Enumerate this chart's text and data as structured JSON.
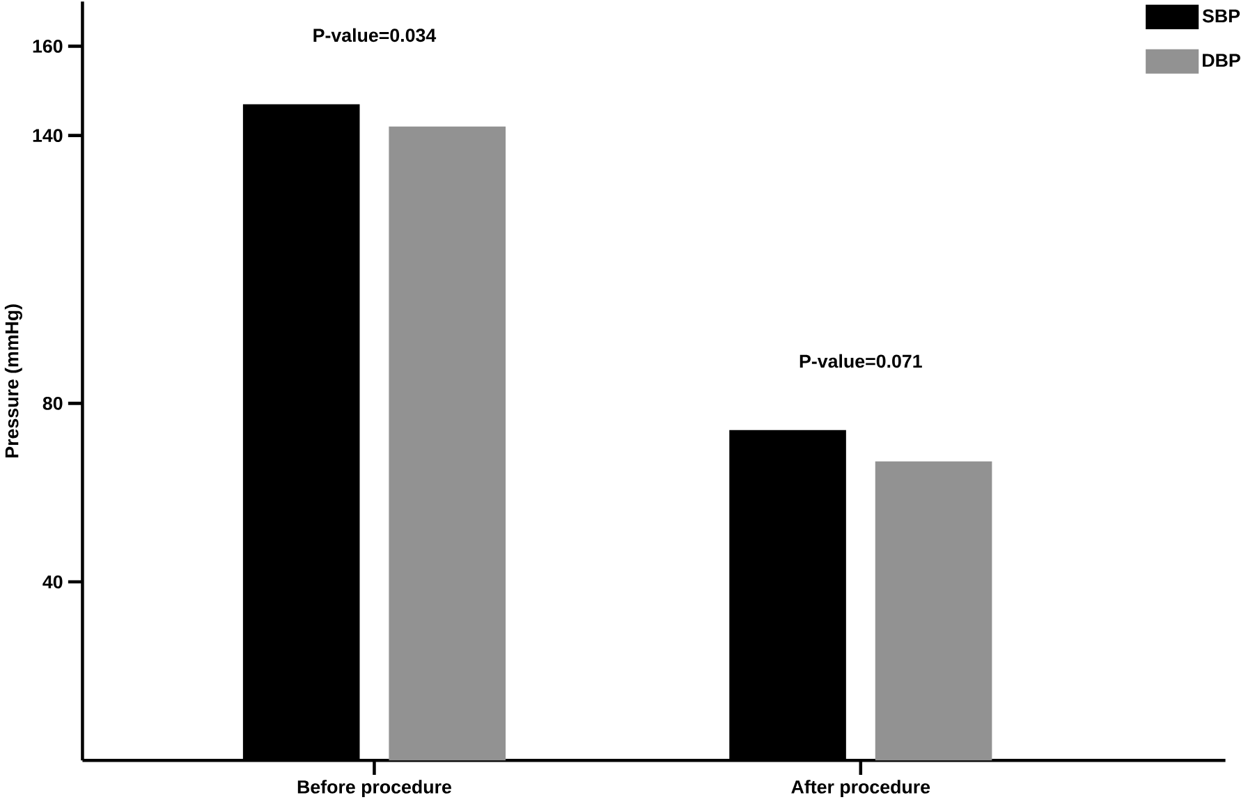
{
  "chart_data": {
    "type": "bar",
    "ylabel": "Pressure (mmHg)",
    "categories": [
      "Before procedure",
      "After procedure"
    ],
    "series": [
      {
        "name": "SBP",
        "color": "#000000",
        "values": [
          147,
          74
        ]
      },
      {
        "name": "DBP",
        "color": "#929292",
        "values": [
          142,
          67
        ]
      }
    ],
    "ylim": [
      0,
      170
    ],
    "yticks": [
      40,
      80,
      140,
      160
    ],
    "legend": "top right",
    "grid": false,
    "annotations": [
      "P-value=0.034",
      "P-value=0.071"
    ]
  }
}
